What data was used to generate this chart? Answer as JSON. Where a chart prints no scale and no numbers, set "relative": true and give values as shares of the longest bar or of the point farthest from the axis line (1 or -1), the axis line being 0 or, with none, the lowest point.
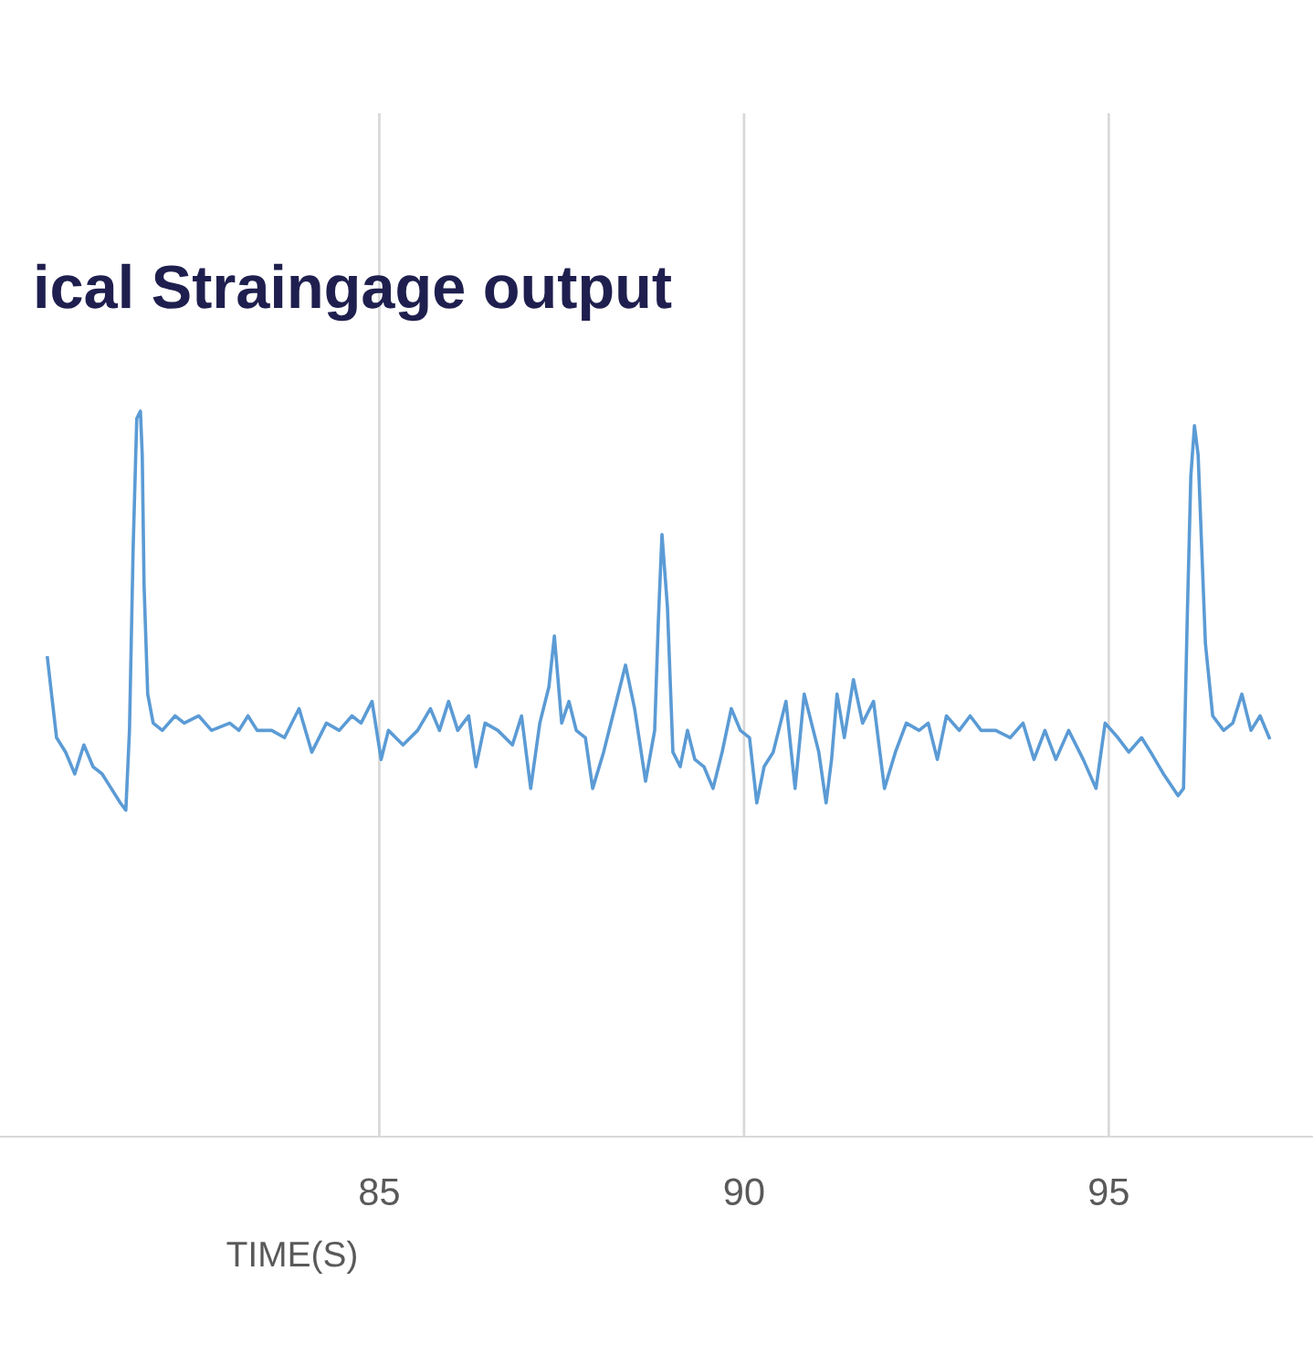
{
  "chart_data": {
    "type": "line",
    "title": "ical Straingage output",
    "xlabel": "TIME(S)",
    "relative": true,
    "xlim": [
      79.8,
      97.8
    ],
    "xticks": [
      85,
      90,
      95
    ],
    "grid": "x",
    "tick_labels": "x",
    "marker": "none",
    "line_style": "solid",
    "series": [
      {
        "color": "#5b9bd5",
        "x": [
          80.45,
          80.575,
          80.7,
          80.825,
          80.95,
          81.075,
          81.2,
          81.325,
          81.45,
          81.525,
          81.575,
          81.625,
          81.675,
          81.725,
          81.75,
          81.775,
          81.825,
          81.9,
          82.025,
          82.2,
          82.325,
          82.525,
          82.7,
          82.95,
          83.075,
          83.2,
          83.325,
          83.525,
          83.7,
          83.9,
          84.075,
          84.275,
          84.45,
          84.625,
          84.75,
          84.9,
          85.025,
          85.125,
          85.325,
          85.525,
          85.7,
          85.825,
          85.95,
          86.075,
          86.225,
          86.325,
          86.45,
          86.625,
          86.825,
          86.95,
          87.075,
          87.2,
          87.325,
          87.4,
          87.5,
          87.6,
          87.7,
          87.825,
          87.925,
          88.075,
          88.2,
          88.375,
          88.5,
          88.65,
          88.775,
          88.825,
          88.875,
          88.95,
          89.025,
          89.125,
          89.225,
          89.325,
          89.45,
          89.575,
          89.7,
          89.825,
          89.95,
          90.075,
          90.175,
          90.275,
          90.4,
          90.575,
          90.7,
          90.825,
          90.95,
          91.025,
          91.125,
          91.2,
          91.275,
          91.375,
          91.5,
          91.625,
          91.775,
          91.925,
          92.075,
          92.225,
          92.4,
          92.525,
          92.65,
          92.775,
          92.95,
          93.1,
          93.25,
          93.45,
          93.65,
          93.825,
          93.975,
          94.125,
          94.275,
          94.45,
          94.65,
          94.825,
          94.95,
          95.125,
          95.275,
          95.45,
          95.575,
          95.75,
          95.95,
          96.025,
          96.075,
          96.125,
          96.175,
          96.225,
          96.275,
          96.325,
          96.425,
          96.575,
          96.7,
          96.825,
          96.95,
          97.075,
          97.2
        ],
        "values": [
          0.66,
          0.55,
          0.53,
          0.5,
          0.54,
          0.51,
          0.5,
          0.48,
          0.46,
          0.45,
          0.56,
          0.81,
          0.99,
          1,
          0.94,
          0.76,
          0.61,
          0.57,
          0.56,
          0.58,
          0.57,
          0.58,
          0.56,
          0.57,
          0.56,
          0.58,
          0.56,
          0.56,
          0.55,
          0.59,
          0.53,
          0.57,
          0.56,
          0.58,
          0.57,
          0.6,
          0.52,
          0.56,
          0.54,
          0.56,
          0.59,
          0.56,
          0.6,
          0.56,
          0.58,
          0.51,
          0.57,
          0.56,
          0.54,
          0.58,
          0.48,
          0.57,
          0.62,
          0.69,
          0.57,
          0.6,
          0.56,
          0.55,
          0.48,
          0.53,
          0.58,
          0.65,
          0.59,
          0.49,
          0.56,
          0.71,
          0.83,
          0.73,
          0.53,
          0.51,
          0.56,
          0.52,
          0.51,
          0.48,
          0.53,
          0.59,
          0.56,
          0.55,
          0.46,
          0.51,
          0.53,
          0.6,
          0.48,
          0.61,
          0.56,
          0.53,
          0.46,
          0.52,
          0.61,
          0.55,
          0.63,
          0.57,
          0.6,
          0.48,
          0.53,
          0.57,
          0.56,
          0.57,
          0.52,
          0.58,
          0.56,
          0.58,
          0.56,
          0.56,
          0.55,
          0.57,
          0.52,
          0.56,
          0.52,
          0.56,
          0.52,
          0.48,
          0.57,
          0.55,
          0.53,
          0.55,
          0.53,
          0.5,
          0.47,
          0.48,
          0.71,
          0.91,
          0.98,
          0.94,
          0.81,
          0.68,
          0.58,
          0.56,
          0.57,
          0.61,
          0.56,
          0.58,
          0.55
        ]
      }
    ]
  }
}
